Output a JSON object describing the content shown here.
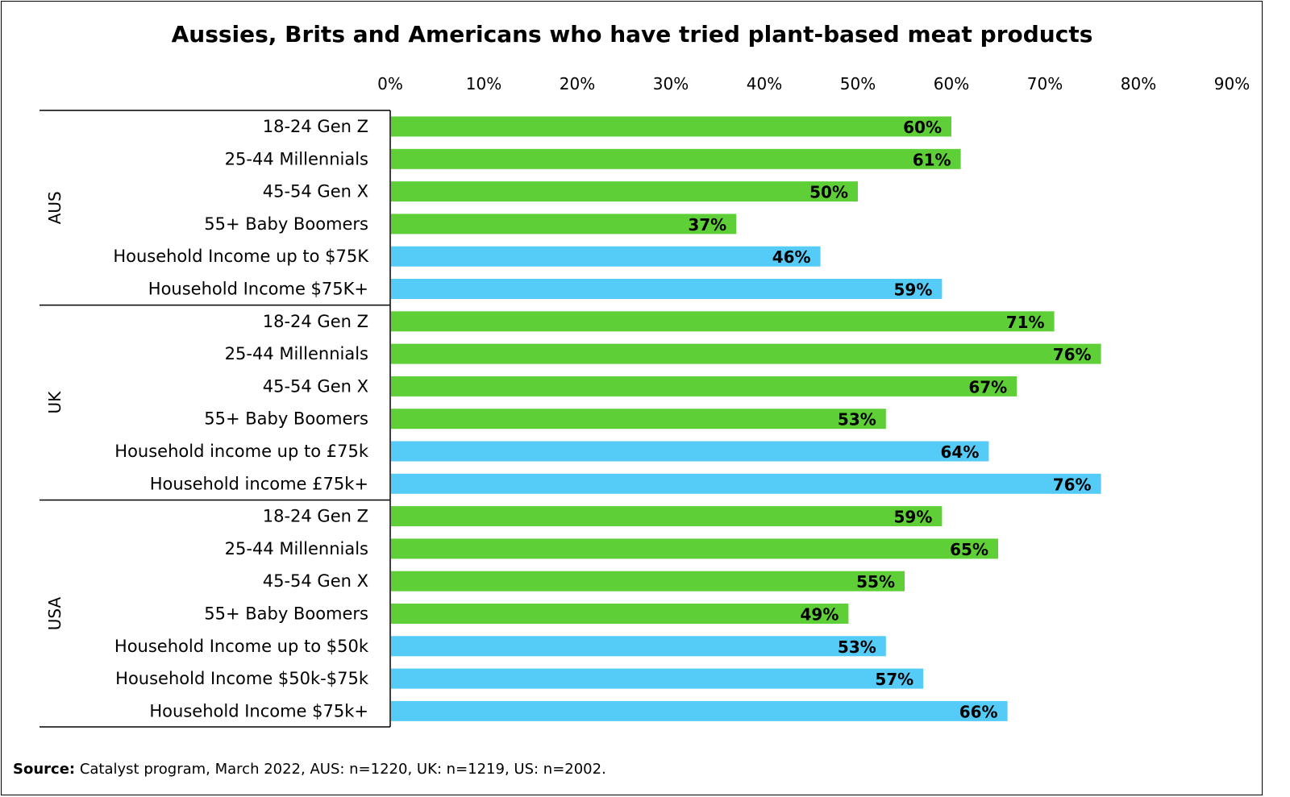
{
  "chart_data": {
    "type": "bar",
    "orientation": "horizontal",
    "title": "Aussies, Brits and Americans who have tried plant-based meat products",
    "x_ticks": [
      "0%",
      "10%",
      "20%",
      "30%",
      "40%",
      "50%",
      "60%",
      "70%",
      "80%",
      "90%"
    ],
    "xlim": [
      0,
      90
    ],
    "legend": "none",
    "colors": {
      "generation": "#5fcf38",
      "income": "#55cbf7"
    },
    "groups": [
      {
        "name": "AUS",
        "bars": [
          {
            "label": "18-24 Gen Z",
            "value": 60,
            "value_label": "60%",
            "kind": "generation"
          },
          {
            "label": "25-44 Millennials",
            "value": 61,
            "value_label": "61%",
            "kind": "generation"
          },
          {
            "label": "45-54 Gen X",
            "value": 50,
            "value_label": "50%",
            "kind": "generation"
          },
          {
            "label": "55+ Baby Boomers",
            "value": 37,
            "value_label": "37%",
            "kind": "generation"
          },
          {
            "label": "Household Income up to $75K",
            "value": 46,
            "value_label": "46%",
            "kind": "income"
          },
          {
            "label": "Household Income $75K+",
            "value": 59,
            "value_label": "59%",
            "kind": "income"
          }
        ]
      },
      {
        "name": "UK",
        "bars": [
          {
            "label": "18-24 Gen Z",
            "value": 71,
            "value_label": "71%",
            "kind": "generation"
          },
          {
            "label": "25-44 Millennials",
            "value": 76,
            "value_label": "76%",
            "kind": "generation"
          },
          {
            "label": "45-54 Gen X",
            "value": 67,
            "value_label": "67%",
            "kind": "generation"
          },
          {
            "label": "55+ Baby Boomers",
            "value": 53,
            "value_label": "53%",
            "kind": "generation"
          },
          {
            "label": "Household income up to £75k",
            "value": 64,
            "value_label": "64%",
            "kind": "income"
          },
          {
            "label": "Household income £75k+",
            "value": 76,
            "value_label": "76%",
            "kind": "income"
          }
        ]
      },
      {
        "name": "USA",
        "bars": [
          {
            "label": "18-24 Gen Z",
            "value": 59,
            "value_label": "59%",
            "kind": "generation"
          },
          {
            "label": "25-44 Millennials",
            "value": 65,
            "value_label": "65%",
            "kind": "generation"
          },
          {
            "label": "45-54 Gen X",
            "value": 55,
            "value_label": "55%",
            "kind": "generation"
          },
          {
            "label": "55+ Baby Boomers",
            "value": 49,
            "value_label": "49%",
            "kind": "generation"
          },
          {
            "label": "Household Income up to $50k",
            "value": 53,
            "value_label": "53%",
            "kind": "income"
          },
          {
            "label": "Household Income $50k-$75k",
            "value": 57,
            "value_label": "57%",
            "kind": "income"
          },
          {
            "label": "Household Income $75k+",
            "value": 66,
            "value_label": "66%",
            "kind": "income"
          }
        ]
      }
    ]
  },
  "source": {
    "label": "Source:",
    "text": " Catalyst program, March 2022, AUS: n=1220, UK: n=1219, US: n=2002."
  }
}
